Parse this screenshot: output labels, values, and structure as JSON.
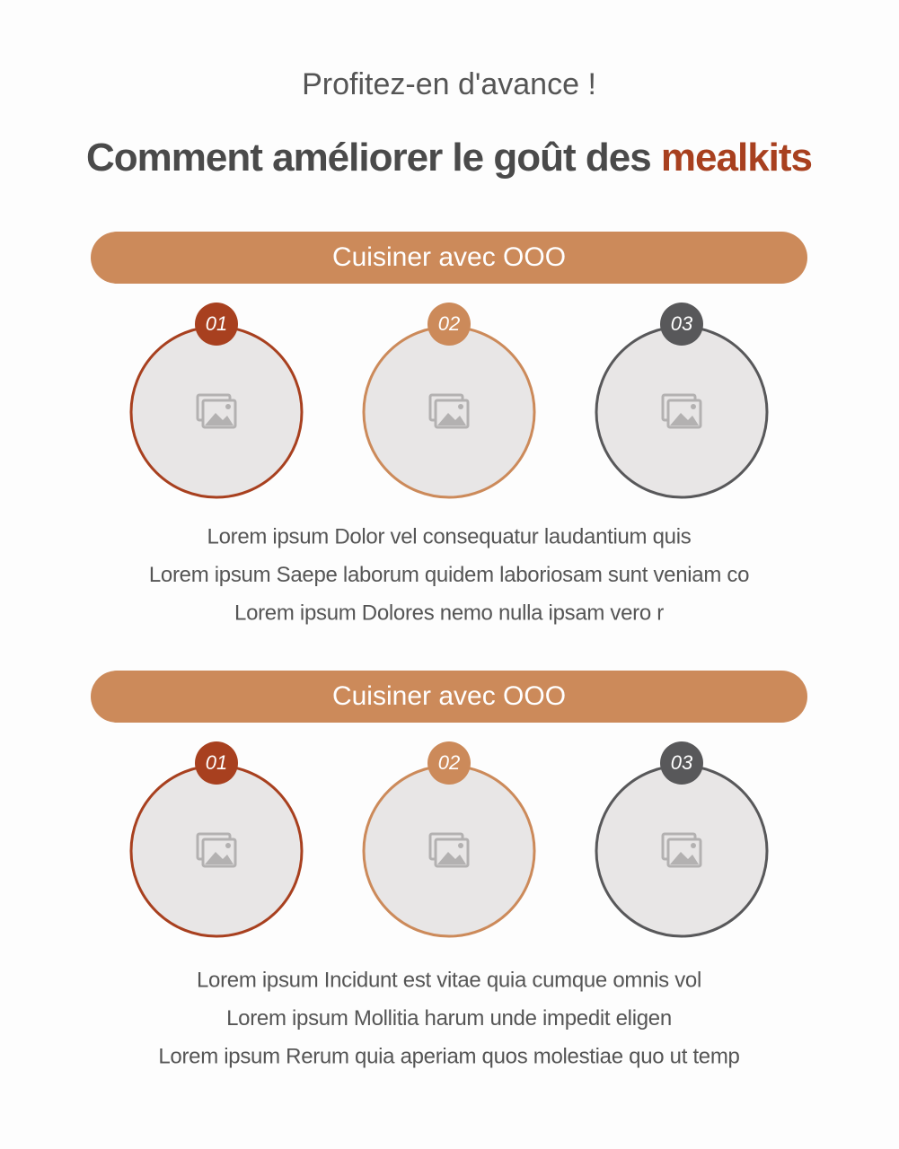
{
  "header": {
    "subtitle": "Profitez-en d'avance !",
    "title": "Comment améliorer le goût des",
    "title_highlight": "mealkits"
  },
  "sections": [
    {
      "heading": "Cuisiner avec OOO",
      "badges": [
        "01",
        "02",
        "03"
      ],
      "lines": [
        "Lorem ipsum Dolor vel consequatur laudantium quis",
        "Lorem ipsum Saepe laborum quidem laboriosam sunt veniam co",
        "Lorem ipsum Dolores nemo nulla ipsam vero r"
      ]
    },
    {
      "heading": "Cuisiner avec OOO",
      "badges": [
        "01",
        "02",
        "03"
      ],
      "lines": [
        "Lorem ipsum Incidunt est vitae quia cumque omnis vol",
        "Lorem ipsum Mollitia harum unde impedit eligen",
        "Lorem ipsum Rerum quia aperiam quos molestiae quo ut temp"
      ]
    }
  ]
}
